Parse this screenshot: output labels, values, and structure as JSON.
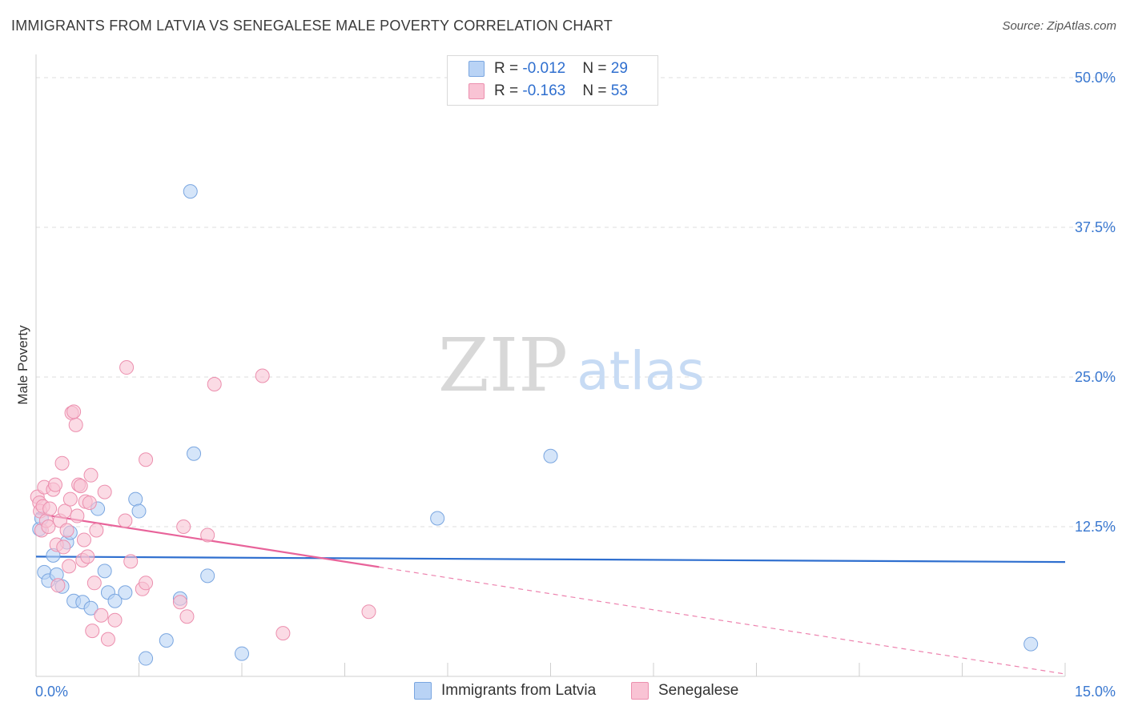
{
  "title": "IMMIGRANTS FROM LATVIA VS SENEGALESE MALE POVERTY CORRELATION CHART",
  "source": "Source: ZipAtlas.com",
  "watermark": {
    "zip": "ZIP",
    "atlas": "atlas"
  },
  "legend_top": {
    "rows": [
      {
        "r_label": "R = ",
        "r_value": "-0.012",
        "n_label": "N = ",
        "n_value": "29"
      },
      {
        "r_label": "R = ",
        "r_value": "-0.163",
        "n_label": "N = ",
        "n_value": "53"
      }
    ]
  },
  "colors": {
    "blue_fill": "#b9d3f5",
    "blue_stroke": "#7aa6e0",
    "blue_line": "#2f6fcf",
    "pink_fill": "#f9c3d4",
    "pink_stroke": "#ec8fae",
    "pink_line": "#e8639a",
    "axis_label": "#3a78d0",
    "grid": "#dddddd"
  },
  "chart_data": {
    "type": "scatter",
    "title": "IMMIGRANTS FROM LATVIA VS SENEGALESE MALE POVERTY CORRELATION CHART",
    "xlabel": "",
    "ylabel": "Male Poverty",
    "xlim": [
      0,
      15
    ],
    "ylim": [
      0,
      50
    ],
    "x_tick_labels": [
      "0.0%",
      "15.0%"
    ],
    "y_tick_values": [
      12.5,
      25.0,
      37.5,
      50.0
    ],
    "y_tick_labels": [
      "12.5%",
      "25.0%",
      "37.5%",
      "50.0%"
    ],
    "grid": true,
    "legend": "bottom-center",
    "series": [
      {
        "name": "Immigrants from Latvia",
        "color": "blue",
        "r": -0.012,
        "n": 29,
        "trend": {
          "x0": 0,
          "y0": 10.0,
          "x1": 15,
          "y1": 9.55,
          "solid_to": 15
        },
        "points": [
          [
            0.05,
            12.3
          ],
          [
            0.12,
            8.7
          ],
          [
            0.18,
            8.0
          ],
          [
            0.25,
            10.1
          ],
          [
            0.3,
            8.5
          ],
          [
            0.38,
            7.5
          ],
          [
            0.45,
            11.2
          ],
          [
            0.5,
            12.0
          ],
          [
            0.55,
            6.3
          ],
          [
            0.68,
            6.2
          ],
          [
            0.8,
            5.7
          ],
          [
            0.9,
            14.0
          ],
          [
            1.0,
            8.8
          ],
          [
            1.05,
            7.0
          ],
          [
            1.15,
            6.3
          ],
          [
            1.3,
            7.0
          ],
          [
            1.45,
            14.8
          ],
          [
            1.5,
            13.8
          ],
          [
            1.6,
            1.5
          ],
          [
            1.9,
            3.0
          ],
          [
            2.1,
            6.5
          ],
          [
            2.25,
            40.5
          ],
          [
            2.3,
            18.6
          ],
          [
            2.5,
            8.4
          ],
          [
            3.0,
            1.9
          ],
          [
            5.85,
            13.2
          ],
          [
            7.5,
            18.4
          ],
          [
            14.5,
            2.7
          ],
          [
            0.08,
            13.2
          ]
        ]
      },
      {
        "name": "Senegalese",
        "color": "pink",
        "r": -0.163,
        "n": 53,
        "trend": {
          "x0": 0,
          "y0": 13.6,
          "x1": 15,
          "y1": 0.2,
          "solid_to": 5.0
        },
        "points": [
          [
            0.02,
            15.0
          ],
          [
            0.05,
            14.5
          ],
          [
            0.06,
            13.8
          ],
          [
            0.08,
            12.2
          ],
          [
            0.1,
            14.2
          ],
          [
            0.12,
            15.8
          ],
          [
            0.15,
            13.0
          ],
          [
            0.18,
            12.5
          ],
          [
            0.2,
            14.0
          ],
          [
            0.25,
            15.6
          ],
          [
            0.28,
            16.0
          ],
          [
            0.3,
            11.0
          ],
          [
            0.32,
            7.6
          ],
          [
            0.35,
            13.0
          ],
          [
            0.38,
            17.8
          ],
          [
            0.4,
            10.8
          ],
          [
            0.42,
            13.8
          ],
          [
            0.45,
            12.2
          ],
          [
            0.48,
            9.2
          ],
          [
            0.5,
            14.8
          ],
          [
            0.52,
            22.0
          ],
          [
            0.55,
            22.1
          ],
          [
            0.58,
            21.0
          ],
          [
            0.6,
            13.4
          ],
          [
            0.62,
            16.0
          ],
          [
            0.65,
            15.9
          ],
          [
            0.68,
            9.7
          ],
          [
            0.7,
            11.4
          ],
          [
            0.72,
            14.6
          ],
          [
            0.75,
            10.0
          ],
          [
            0.78,
            14.5
          ],
          [
            0.8,
            16.8
          ],
          [
            0.82,
            3.8
          ],
          [
            0.85,
            7.8
          ],
          [
            0.88,
            12.2
          ],
          [
            0.95,
            5.1
          ],
          [
            1.0,
            15.4
          ],
          [
            1.05,
            3.1
          ],
          [
            1.15,
            4.7
          ],
          [
            1.3,
            13.0
          ],
          [
            1.32,
            25.8
          ],
          [
            1.38,
            9.6
          ],
          [
            1.55,
            7.3
          ],
          [
            1.6,
            7.8
          ],
          [
            1.6,
            18.1
          ],
          [
            2.1,
            6.2
          ],
          [
            2.15,
            12.5
          ],
          [
            2.2,
            5.0
          ],
          [
            2.5,
            11.8
          ],
          [
            2.6,
            24.4
          ],
          [
            3.3,
            25.1
          ],
          [
            3.6,
            3.6
          ],
          [
            4.85,
            5.4
          ]
        ]
      }
    ]
  },
  "bottom_legend": [
    "Immigrants from Latvia",
    "Senegalese"
  ]
}
